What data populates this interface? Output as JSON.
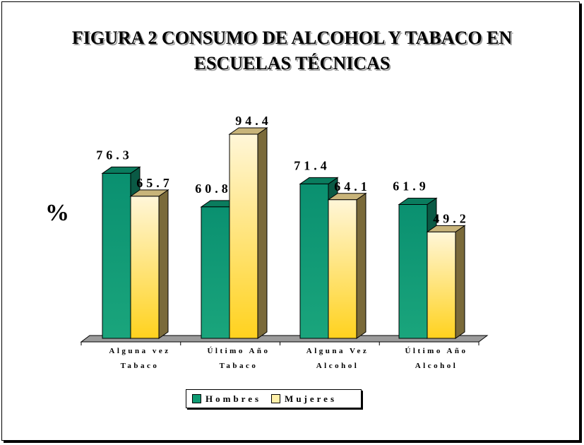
{
  "chart_data": {
    "type": "bar",
    "title": "FIGURA 2 CONSUMO DE ALCOHOL Y TABACO EN ESCUELAS TÉCNICAS",
    "title_lines": [
      "FIGURA 2 CONSUMO DE ALCOHOL Y TABACO EN",
      "ESCUELAS TÉCNICAS"
    ],
    "ylabel": "%",
    "xlabel": "",
    "categories": [
      [
        "Alguna vez",
        "Tabaco"
      ],
      [
        "Último Año",
        "Tabaco"
      ],
      [
        "Alguna Vez",
        "Alcohol"
      ],
      [
        "Último Año",
        "Alcohol"
      ]
    ],
    "series": [
      {
        "name": "Hombres",
        "values": [
          76.3,
          60.8,
          71.4,
          61.9
        ],
        "color_top": "#0a9070",
        "color_bottom": "#1aa57c",
        "color_side": "#0a5a45"
      },
      {
        "name": "Mujeres",
        "values": [
          65.7,
          94.4,
          64.1,
          49.2
        ],
        "color_top": "#fff6d8",
        "color_bottom": "#ffd21e",
        "color_side": "#7a6a3a"
      }
    ],
    "ylim": [
      0,
      100
    ],
    "grid": false,
    "legend_position": "bottom",
    "style": "3d-clustered-bar"
  }
}
